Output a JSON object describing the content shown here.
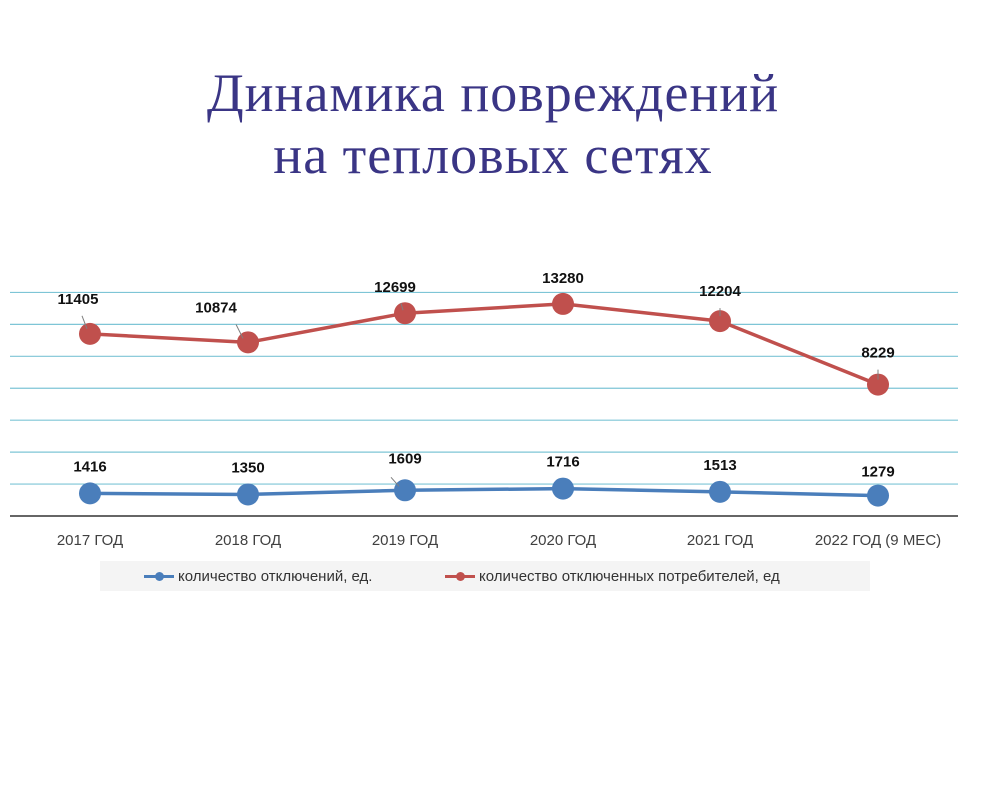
{
  "title_lines": [
    "Динамика повреждений",
    "на тепловых сетях"
  ],
  "colors": {
    "title": "#3a3585",
    "series_blue": "#4a7ebb",
    "series_red": "#c0504d",
    "grid": "#7ec5d6",
    "axis": "#333333"
  },
  "legend": {
    "items": [
      {
        "label": "количество отключений, ед.",
        "color": "#4a7ebb"
      },
      {
        "label": "количество отключенных потребителей, ед",
        "color": "#c0504d"
      }
    ]
  },
  "chart_data": {
    "type": "line",
    "title": "Динамика повреждений на тепловых сетях",
    "categories": [
      "2017 ГОД",
      "2018 ГОД",
      "2019 ГОД",
      "2020 ГОД",
      "2021 ГОД",
      "2022 ГОД (9 МЕС)"
    ],
    "series": [
      {
        "name": "количество отключений, ед.",
        "color": "#4a7ebb",
        "values": [
          1416,
          1350,
          1609,
          1716,
          1513,
          1279
        ],
        "data_labels": [
          "1416",
          "1350",
          "1609",
          "1716",
          "1513",
          "1279"
        ]
      },
      {
        "name": "количество отключенных потребителей, ед",
        "color": "#c0504d",
        "values": [
          11405,
          10874,
          12699,
          13280,
          12204,
          8229
        ],
        "data_labels": [
          "11405",
          "10874",
          "12699",
          "13280",
          "12204",
          "8229"
        ]
      }
    ],
    "ylim": [
      0,
      14000
    ],
    "grid": true,
    "legend_position": "bottom"
  }
}
